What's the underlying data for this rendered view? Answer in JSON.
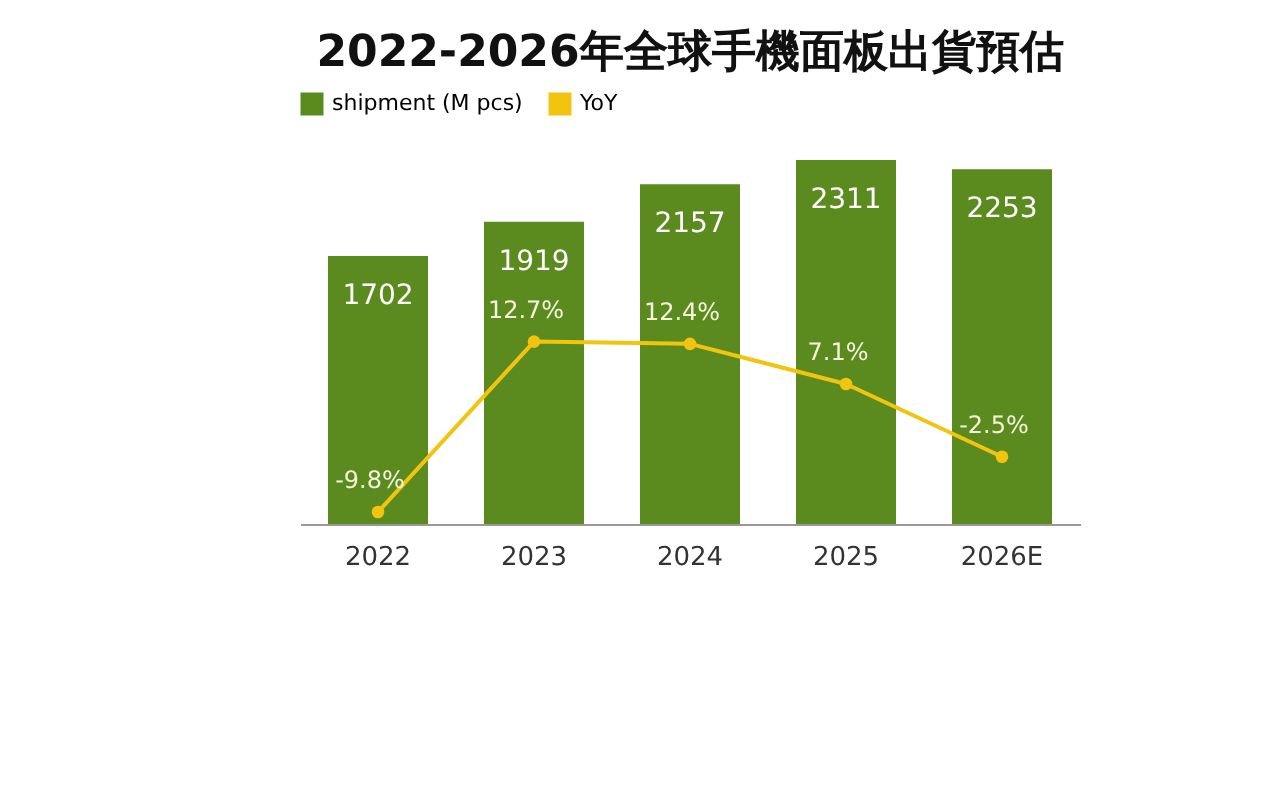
{
  "chart_data": {
    "type": "bar",
    "title": "2022-2026年全球手機面板出貨預估",
    "categories": [
      "2022",
      "2023",
      "2024",
      "2025",
      "2026E"
    ],
    "series": [
      {
        "name": "shipment (M pcs)",
        "color": "#5b8a1e",
        "values": [
          1702,
          1919,
          2157,
          2311,
          2253
        ]
      },
      {
        "name": "YoY",
        "type": "line",
        "axis": "y2",
        "color": "#f2c40f",
        "values": [
          -9.8,
          12.7,
          12.4,
          7.1,
          -2.5
        ],
        "value_labels": [
          "-9.8%",
          "12.7%",
          "12.4%",
          "7.1%",
          "-2.5%"
        ]
      }
    ],
    "data_labels": true,
    "legend": "top",
    "marker": "circle",
    "line_style": "solid",
    "grid": false
  }
}
